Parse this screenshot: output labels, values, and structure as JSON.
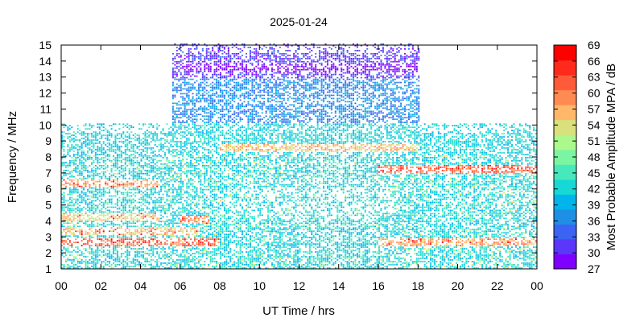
{
  "chart_data": {
    "type": "heatmap",
    "title": "2025-01-24",
    "xlabel": "UT Time / hrs",
    "ylabel": "Frequency / MHz",
    "colorbar_label": "Most Probable Amplitude MPA / dB",
    "x_ticks": [
      "00",
      "02",
      "04",
      "06",
      "08",
      "10",
      "12",
      "14",
      "16",
      "18",
      "20",
      "22",
      "00"
    ],
    "x_range_hours": [
      0,
      24
    ],
    "y_ticks": [
      1,
      2,
      3,
      4,
      5,
      6,
      7,
      8,
      9,
      10,
      11,
      12,
      13,
      14,
      15
    ],
    "ylim": [
      1,
      15
    ],
    "colorbar_ticks": [
      27,
      30,
      33,
      36,
      39,
      42,
      45,
      48,
      51,
      54,
      57,
      60,
      63,
      66,
      69
    ],
    "colorbar_range": [
      27,
      69
    ],
    "colorbar_colors": [
      "#7f00ff",
      "#5a37fb",
      "#3c64f2",
      "#1f8fe6",
      "#00b5eb",
      "#18d8d6",
      "#47e9bc",
      "#7bf5a2",
      "#abf88c",
      "#d9e07c",
      "#ffb86a",
      "#ff8a52",
      "#ff5a3a",
      "#ff2a1c",
      "#ff0000"
    ],
    "coverage": [
      {
        "hours": [
          0,
          5.5
        ],
        "freq_max_mhz": 10
      },
      {
        "hours": [
          5.5,
          18
        ],
        "freq_max_mhz": 15
      },
      {
        "hours": [
          18,
          24
        ],
        "freq_max_mhz": 10
      }
    ],
    "bands": [
      {
        "freq_mhz": 2.6,
        "hours": [
          0,
          8
        ],
        "mpa_db": 65
      },
      {
        "freq_mhz": 2.6,
        "hours": [
          16,
          24
        ],
        "mpa_db": 62
      },
      {
        "freq_mhz": 3.3,
        "hours": [
          0,
          7
        ],
        "mpa_db": 60
      },
      {
        "freq_mhz": 4.2,
        "hours": [
          0,
          5
        ],
        "mpa_db": 58
      },
      {
        "freq_mhz": 4.0,
        "hours": [
          6,
          7.5
        ],
        "mpa_db": 64
      },
      {
        "freq_mhz": 6.3,
        "hours": [
          0,
          5
        ],
        "mpa_db": 62
      },
      {
        "freq_mhz": 7.2,
        "hours": [
          16,
          24
        ],
        "mpa_db": 66
      },
      {
        "freq_mhz": 8.5,
        "hours": [
          8,
          18
        ],
        "mpa_db": 60
      },
      {
        "freq_mhz": 13.5,
        "hours": [
          6,
          18
        ],
        "mpa_db": 30
      }
    ]
  }
}
